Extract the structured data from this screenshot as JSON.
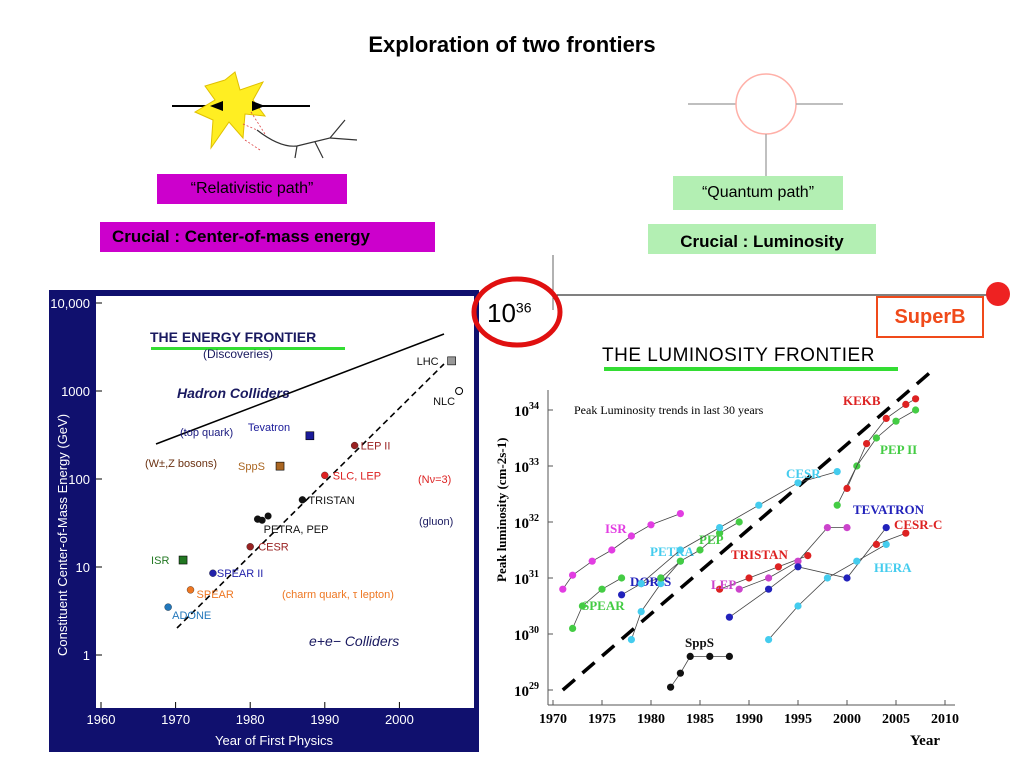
{
  "slide": {
    "title": "Exploration of two frontiers"
  },
  "relativistic": {
    "label": "“Relativistic path”",
    "crucial": "Crucial : Center-of-mass energy",
    "label_bg": "#cc00cc",
    "crucial_bg": "#cc00cc"
  },
  "quantum": {
    "label": "“Quantum path”",
    "crucial": "Crucial : Luminosity",
    "label_bg": "#b3efb3",
    "crucial_bg": "#b3efb3"
  },
  "highlight": {
    "mantissa": "10",
    "exponent": "36",
    "ring_color": "#e01010"
  },
  "superb": {
    "label": "SuperB",
    "color": "#f04a1a",
    "dot_color": "#ee2222"
  },
  "icons": [
    "collision-star-icon",
    "quantum-loop-diagram-icon",
    "highlight-ring-icon",
    "arrow-icon"
  ],
  "chart_data": [
    {
      "type": "scatter",
      "title": "THE ENERGY FRONTIER",
      "subtitle": "(Discoveries)",
      "xlabel": "Year of First Physics",
      "ylabel": "Constituent Center-of-Mass Energy   (GeV)",
      "xlim": [
        1960,
        2010
      ],
      "ylim": [
        1,
        10000
      ],
      "log_y": true,
      "x_ticks": [
        "1960",
        "1970",
        "1980",
        "1990",
        "2000"
      ],
      "y_ticks": [
        "1",
        "10",
        "100",
        "1000",
        "10,000"
      ],
      "annotations": [
        "Hadron Colliders",
        "e+e−  Colliders",
        "(top quark)",
        "(W±,Z  bosons)",
        "(Nν=3)",
        "(gluon)",
        "(charm quark, τ lepton)"
      ],
      "series": [
        {
          "name": "Hadron Colliders",
          "points": [
            {
              "label": "ISR",
              "x": 1971,
              "y": 12
            },
            {
              "label": "SppS",
              "x": 1984,
              "y": 140
            },
            {
              "label": "Tevatron",
              "x": 1988,
              "y": 310
            },
            {
              "label": "LHC",
              "x": 2007,
              "y": 2200
            }
          ]
        },
        {
          "name": "e+e− Colliders",
          "points": [
            {
              "label": "ADONE",
              "x": 1969,
              "y": 3.5
            },
            {
              "label": "SPEAR",
              "x": 1972,
              "y": 5.5
            },
            {
              "label": "SPEAR II",
              "x": 1975,
              "y": 8.5
            },
            {
              "label": "CESR",
              "x": 1980,
              "y": 17
            },
            {
              "label": "PETRA, PEP",
              "x": 1981,
              "y": 35
            },
            {
              "label": "TRISTAN",
              "x": 1987,
              "y": 58
            },
            {
              "label": "SLC, LEP",
              "x": 1990,
              "y": 110
            },
            {
              "label": "LEP II",
              "x": 1994,
              "y": 240
            },
            {
              "label": "NLC",
              "x": 2008,
              "y": 1000
            }
          ]
        }
      ]
    },
    {
      "type": "line",
      "title": "THE LUMINOSITY FRONTIER",
      "annotation": "Peak Luminosity trends in last 30 years",
      "xlabel": "Year",
      "ylabel": "Peak luminosity (cm-2s-1)",
      "xlim": [
        1970,
        2010
      ],
      "ylim_exp": [
        29,
        34
      ],
      "log_y": true,
      "x_ticks": [
        "1970",
        "1975",
        "1980",
        "1985",
        "1990",
        "1995",
        "2000",
        "2005",
        "2010"
      ],
      "y_ticks": [
        "29",
        "30",
        "31",
        "32",
        "33",
        "34"
      ],
      "series": [
        {
          "name": "ISR",
          "color": "#e23de2",
          "x": [
            1971,
            1972,
            1974,
            1976,
            1978,
            1980,
            1983
          ],
          "y_exp": [
            30.8,
            31.05,
            31.3,
            31.5,
            31.75,
            31.95,
            32.15
          ]
        },
        {
          "name": "SPEAR",
          "color": "#44cc44",
          "x": [
            1972,
            1973,
            1975,
            1977
          ],
          "y_exp": [
            30.1,
            30.5,
            30.8,
            31.0
          ]
        },
        {
          "name": "DORIS",
          "color": "#2222bb",
          "x": [
            1977,
            1979,
            1981
          ],
          "y_exp": [
            30.7,
            30.9,
            31.0
          ]
        },
        {
          "name": "PETRA",
          "color": "#44ccee",
          "x": [
            1978,
            1979,
            1981,
            1983
          ],
          "y_exp": [
            29.9,
            30.4,
            30.9,
            31.3
          ]
        },
        {
          "name": "PEP",
          "color": "#44cc44",
          "x": [
            1981,
            1983,
            1985,
            1987,
            1989
          ],
          "y_exp": [
            31.0,
            31.3,
            31.5,
            31.8,
            32.0
          ]
        },
        {
          "name": "CESR",
          "color": "#44ccee",
          "x": [
            1979,
            1983,
            1987,
            1991,
            1995,
            1999
          ],
          "y_exp": [
            30.9,
            31.5,
            31.9,
            32.3,
            32.7,
            32.9
          ]
        },
        {
          "name": "TRISTAN",
          "color": "#dd2222",
          "x": [
            1987,
            1990,
            1993,
            1996
          ],
          "y_exp": [
            30.8,
            31.0,
            31.2,
            31.4
          ]
        },
        {
          "name": "LEP",
          "color": "#cc44cc",
          "x": [
            1989,
            1992,
            1995,
            1998,
            2000
          ],
          "y_exp": [
            30.8,
            31.0,
            31.3,
            31.9,
            31.9
          ]
        },
        {
          "name": "SppS",
          "color": "#111111",
          "x": [
            1982,
            1983,
            1984,
            1986,
            1988
          ],
          "y_exp": [
            29.05,
            29.3,
            29.6,
            29.6,
            29.6
          ]
        },
        {
          "name": "TEVATRON",
          "color": "#2222bb",
          "x": [
            1988,
            1992,
            1995,
            2000,
            2004
          ],
          "y_exp": [
            30.3,
            30.8,
            31.2,
            31.0,
            31.9
          ]
        },
        {
          "name": "HERA",
          "color": "#44ccee",
          "x": [
            1992,
            1995,
            1998,
            2001,
            2004
          ],
          "y_exp": [
            29.9,
            30.5,
            31.0,
            31.3,
            31.6
          ]
        },
        {
          "name": "PEP II",
          "color": "#44cc44",
          "x": [
            1999,
            2001,
            2003,
            2005,
            2007
          ],
          "y_exp": [
            32.3,
            33.0,
            33.5,
            33.8,
            34.0
          ]
        },
        {
          "name": "KEKB",
          "color": "#dd2222",
          "x": [
            2000,
            2002,
            2004,
            2006,
            2007
          ],
          "y_exp": [
            32.6,
            33.4,
            33.85,
            34.1,
            34.2
          ]
        },
        {
          "name": "CESR-C",
          "color": "#dd2222",
          "x": [
            2003,
            2006
          ],
          "y_exp": [
            31.6,
            31.8
          ]
        }
      ],
      "trend": {
        "x": [
          1971,
          2010
        ],
        "y_exp": [
          29,
          34.9
        ]
      }
    }
  ]
}
